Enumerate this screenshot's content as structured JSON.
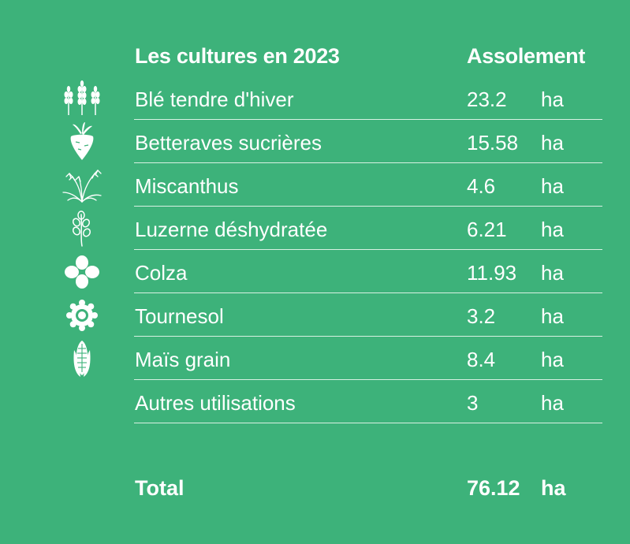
{
  "header": {
    "title": "Les cultures en 2023",
    "column": "Assolement"
  },
  "rows": [
    {
      "icon": "wheat-icon",
      "label": "Blé tendre d'hiver",
      "value": "23.2",
      "unit": "ha"
    },
    {
      "icon": "beet-icon",
      "label": "Betteraves sucrières",
      "value": "15.58",
      "unit": "ha"
    },
    {
      "icon": "miscanthus-icon",
      "label": "Miscanthus",
      "value": "4.6",
      "unit": "ha"
    },
    {
      "icon": "alfalfa-icon",
      "label": "Luzerne déshydratée",
      "value": "6.21",
      "unit": "ha"
    },
    {
      "icon": "rapeseed-icon",
      "label": "Colza",
      "value": "11.93",
      "unit": "ha"
    },
    {
      "icon": "sunflower-icon",
      "label": "Tournesol",
      "value": "3.2",
      "unit": "ha"
    },
    {
      "icon": "corn-icon",
      "label": "Maïs grain",
      "value": "8.4",
      "unit": "ha"
    },
    {
      "icon": "",
      "label": "Autres utilisations",
      "value": "3",
      "unit": "ha"
    }
  ],
  "total": {
    "label": "Total",
    "value": "76.12",
    "unit": "ha"
  },
  "colors": {
    "background": "#3db27a",
    "text": "#ffffff",
    "divider": "#d8f1e3"
  }
}
